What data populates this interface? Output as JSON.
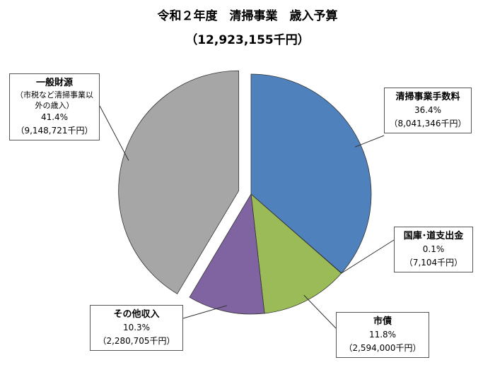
{
  "chart_data": {
    "type": "pie",
    "title": "令和２年度　清掃事業　歳入予算",
    "subtitle": "（12,923,155千円）",
    "slices": [
      {
        "label": "清掃事業手数料",
        "percent_label": "36.4%",
        "amount_label": "（8,041,346千円）",
        "value": 8041346,
        "color": "#4f81bd"
      },
      {
        "label": "国庫･道支出金",
        "percent_label": "0.1%",
        "amount_label": "（7,104千円）",
        "value": 7104,
        "color": "#1f3864"
      },
      {
        "label": "市債",
        "percent_label": "11.8%",
        "amount_label": "（2,594,000千円）",
        "value": 2594000,
        "color": "#9bbb59"
      },
      {
        "label": "その他収入",
        "percent_label": "10.3%",
        "amount_label": "（2,280,705千円）",
        "value": 2280705,
        "color": "#8064a2"
      },
      {
        "label": "一般財源",
        "note": "（市税など清掃事業以外の歳入）",
        "percent_label": "41.4%",
        "amount_label": "（9,148,721千円）",
        "value": 9148721,
        "color": "#a6a6a6",
        "exploded": true
      }
    ],
    "legend": "none"
  }
}
